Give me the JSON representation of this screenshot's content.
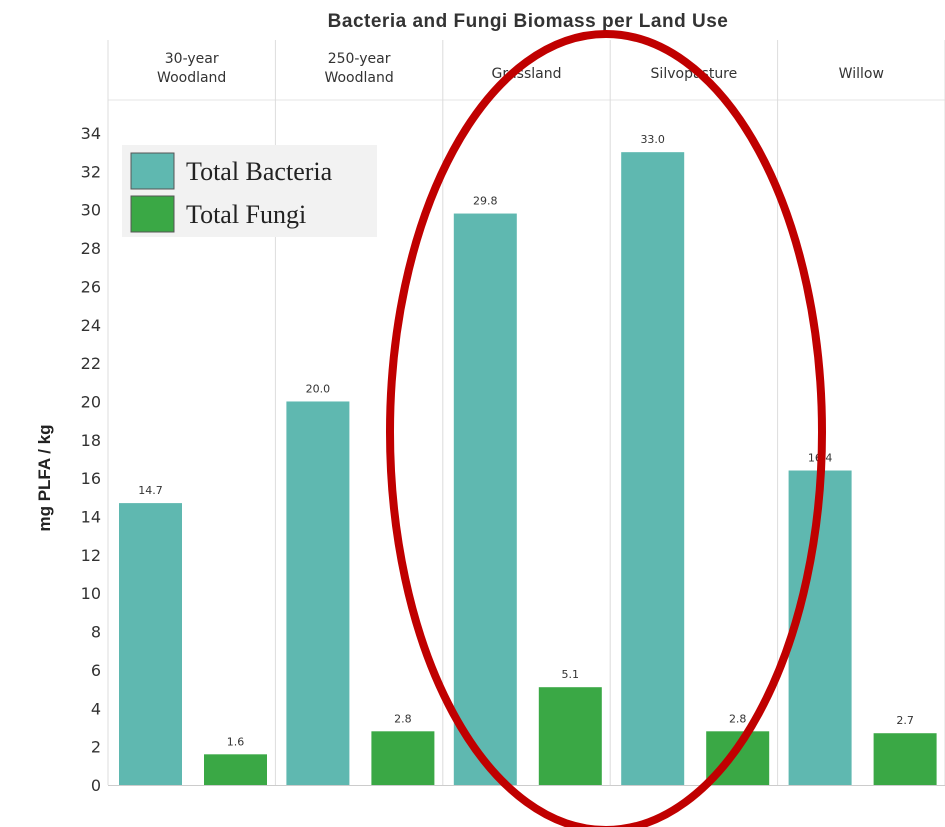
{
  "chart_data": {
    "type": "bar",
    "title": "Bacteria and Fungi Biomass per Land Use",
    "ylabel": "mg PLFA / kg",
    "xlabel": "",
    "categories": [
      [
        "30-year",
        "Woodland"
      ],
      [
        "250-year",
        "Woodland"
      ],
      [
        "Grassland"
      ],
      [
        "Silvopasture"
      ],
      [
        "Willow"
      ]
    ],
    "series": [
      {
        "name": "Total Bacteria",
        "color": "#5fb8b0",
        "values": [
          14.7,
          20.0,
          29.8,
          33.0,
          16.4
        ],
        "labels": [
          "14.7",
          "20.0",
          "29.8",
          "33.0",
          "16.4"
        ]
      },
      {
        "name": "Total Fungi",
        "color": "#3aa845",
        "values": [
          1.6,
          2.8,
          5.1,
          2.8,
          2.7
        ],
        "labels": [
          "1.6",
          "2.8",
          "5.1",
          "2.8",
          "2.7"
        ]
      }
    ],
    "yticks": [
      0,
      2,
      4,
      6,
      8,
      10,
      12,
      14,
      16,
      18,
      20,
      22,
      24,
      26,
      28,
      30,
      32,
      34
    ],
    "ylim": [
      0,
      34
    ],
    "grid": "vertical separators between categories",
    "legend_position": "top-left",
    "highlight": {
      "shape": "ellipse",
      "color": "#c00000",
      "around": [
        "Grassland",
        "Silvopasture"
      ]
    }
  }
}
